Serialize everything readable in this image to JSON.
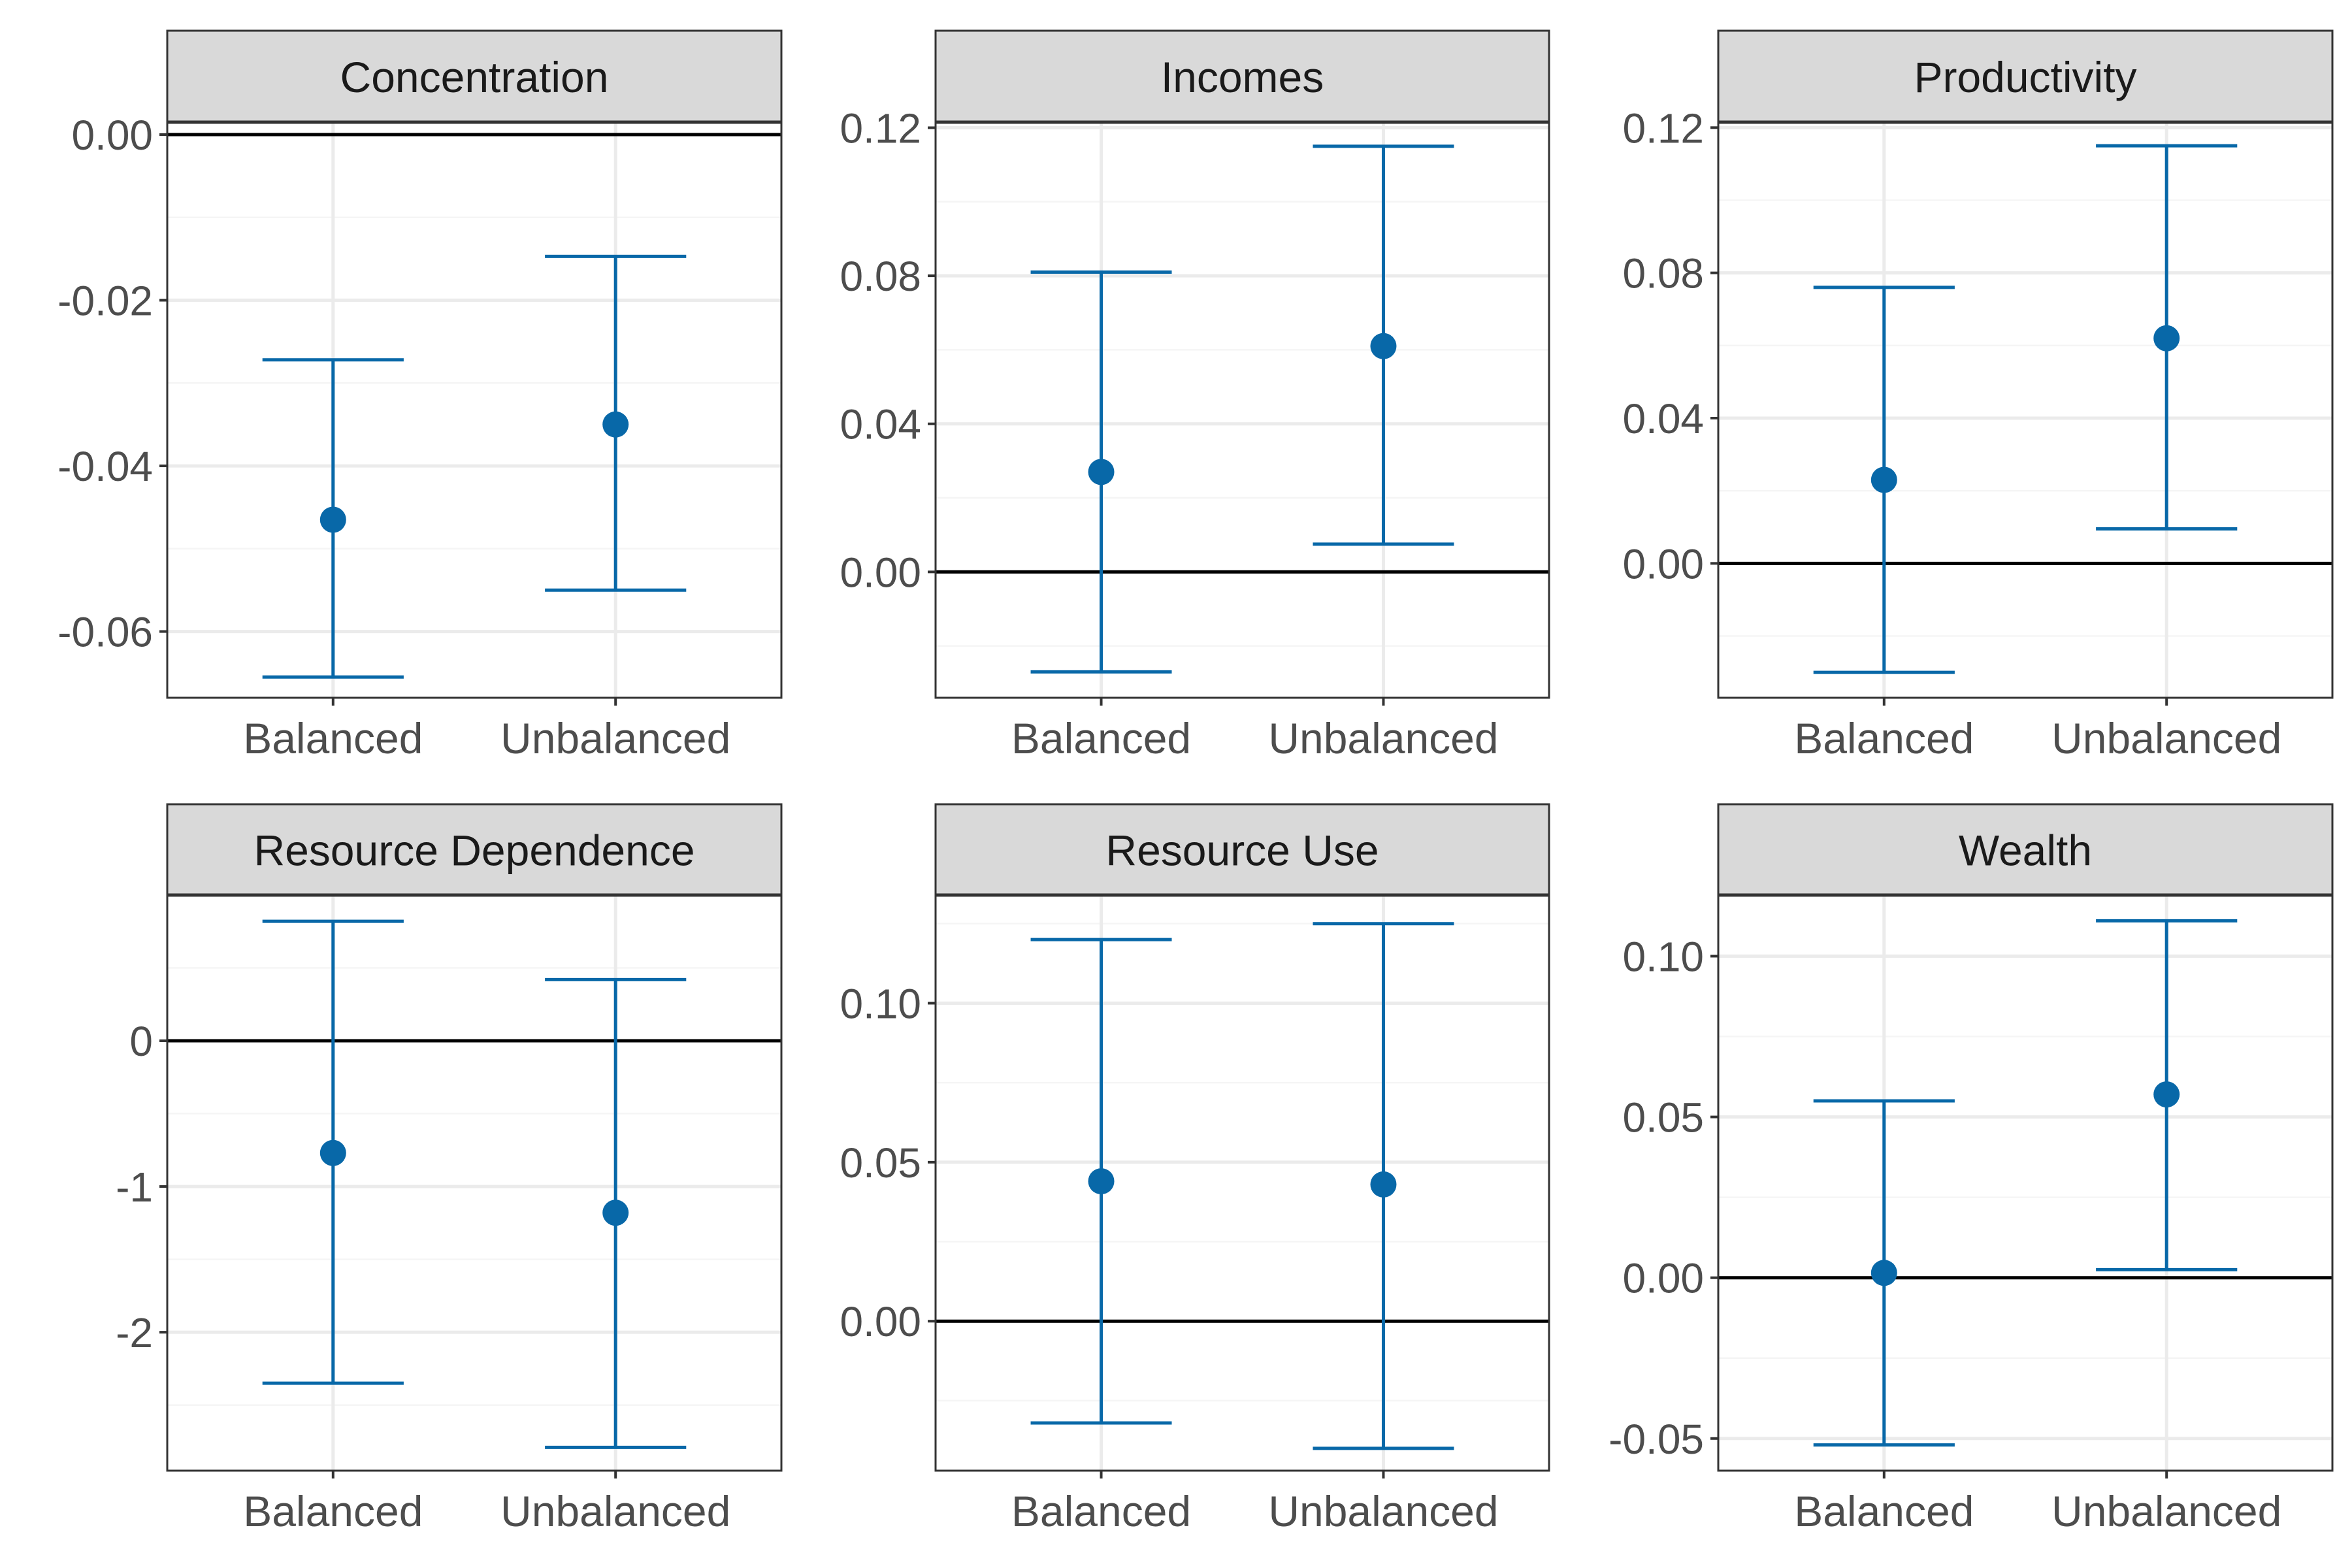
{
  "colors": {
    "point": "#0868a8",
    "errorbar": "#0868a8",
    "strip_fill": "#d9d9d9",
    "strip_border": "#333333",
    "panel_border": "#333333",
    "grid_major": "#ebebeb",
    "grid_minor": "#f5f5f5",
    "zero_line": "#000000",
    "axis_text": "#4d4d4d",
    "strip_text": "#1a1a1a"
  },
  "chart_data": [
    {
      "type": "errorbar",
      "facet": "Concentration",
      "categories": [
        "Balanced",
        "Unbalanced"
      ],
      "estimate": [
        -0.0465,
        -0.035
      ],
      "ci_low": [
        -0.0655,
        -0.055
      ],
      "ci_high": [
        -0.0272,
        -0.0147
      ],
      "ylim": [
        -0.068,
        0.0015
      ],
      "yticks": [
        0.0,
        -0.02,
        -0.04,
        -0.06
      ],
      "ytick_labels": [
        "0.00",
        "-0.02",
        "-0.04",
        "-0.06"
      ],
      "zero_line": 0,
      "grid": true
    },
    {
      "type": "errorbar",
      "facet": "Incomes",
      "categories": [
        "Balanced",
        "Unbalanced"
      ],
      "estimate": [
        0.027,
        0.061
      ],
      "ci_low": [
        -0.027,
        0.0075
      ],
      "ci_high": [
        0.081,
        0.115
      ],
      "ylim": [
        -0.034,
        0.1215
      ],
      "yticks": [
        0.0,
        0.04,
        0.08,
        0.12
      ],
      "ytick_labels": [
        "0.00",
        "0.04",
        "0.08",
        "0.12"
      ],
      "zero_line": 0,
      "grid": true
    },
    {
      "type": "errorbar",
      "facet": "Productivity",
      "categories": [
        "Balanced",
        "Unbalanced"
      ],
      "estimate": [
        0.023,
        0.062
      ],
      "ci_low": [
        -0.03,
        0.0095
      ],
      "ci_high": [
        0.076,
        0.115
      ],
      "ylim": [
        -0.037,
        0.1215
      ],
      "yticks": [
        0.0,
        0.04,
        0.08,
        0.12
      ],
      "ytick_labels": [
        "0.00",
        "0.04",
        "0.08",
        "0.12"
      ],
      "zero_line": 0,
      "grid": true
    },
    {
      "type": "errorbar",
      "facet": "Resource Dependence",
      "categories": [
        "Balanced",
        "Unbalanced"
      ],
      "estimate": [
        -0.77,
        -1.18
      ],
      "ci_low": [
        -2.35,
        -2.79
      ],
      "ci_high": [
        0.82,
        0.42
      ],
      "ylim": [
        -2.95,
        1.0
      ],
      "yticks": [
        0,
        -1,
        -2
      ],
      "ytick_labels": [
        "0",
        "-1",
        "-2"
      ],
      "zero_line": 0,
      "grid": true
    },
    {
      "type": "errorbar",
      "facet": "Resource Use",
      "categories": [
        "Balanced",
        "Unbalanced"
      ],
      "estimate": [
        0.044,
        0.043
      ],
      "ci_low": [
        -0.032,
        -0.04
      ],
      "ci_high": [
        0.12,
        0.125
      ],
      "ylim": [
        -0.047,
        0.134
      ],
      "yticks": [
        0.0,
        0.05,
        0.1
      ],
      "ytick_labels": [
        "0.00",
        "0.05",
        "0.10"
      ],
      "zero_line": 0,
      "grid": true
    },
    {
      "type": "errorbar",
      "facet": "Wealth",
      "categories": [
        "Balanced",
        "Unbalanced"
      ],
      "estimate": [
        0.0015,
        0.057
      ],
      "ci_low": [
        -0.052,
        0.0025
      ],
      "ci_high": [
        0.055,
        0.111
      ],
      "ylim": [
        -0.06,
        0.119
      ],
      "yticks": [
        0.1,
        0.05,
        0.0,
        -0.05
      ],
      "ytick_labels": [
        "0.10",
        "0.05",
        "0.00",
        "-0.05"
      ],
      "zero_line": 0,
      "grid": true
    }
  ]
}
